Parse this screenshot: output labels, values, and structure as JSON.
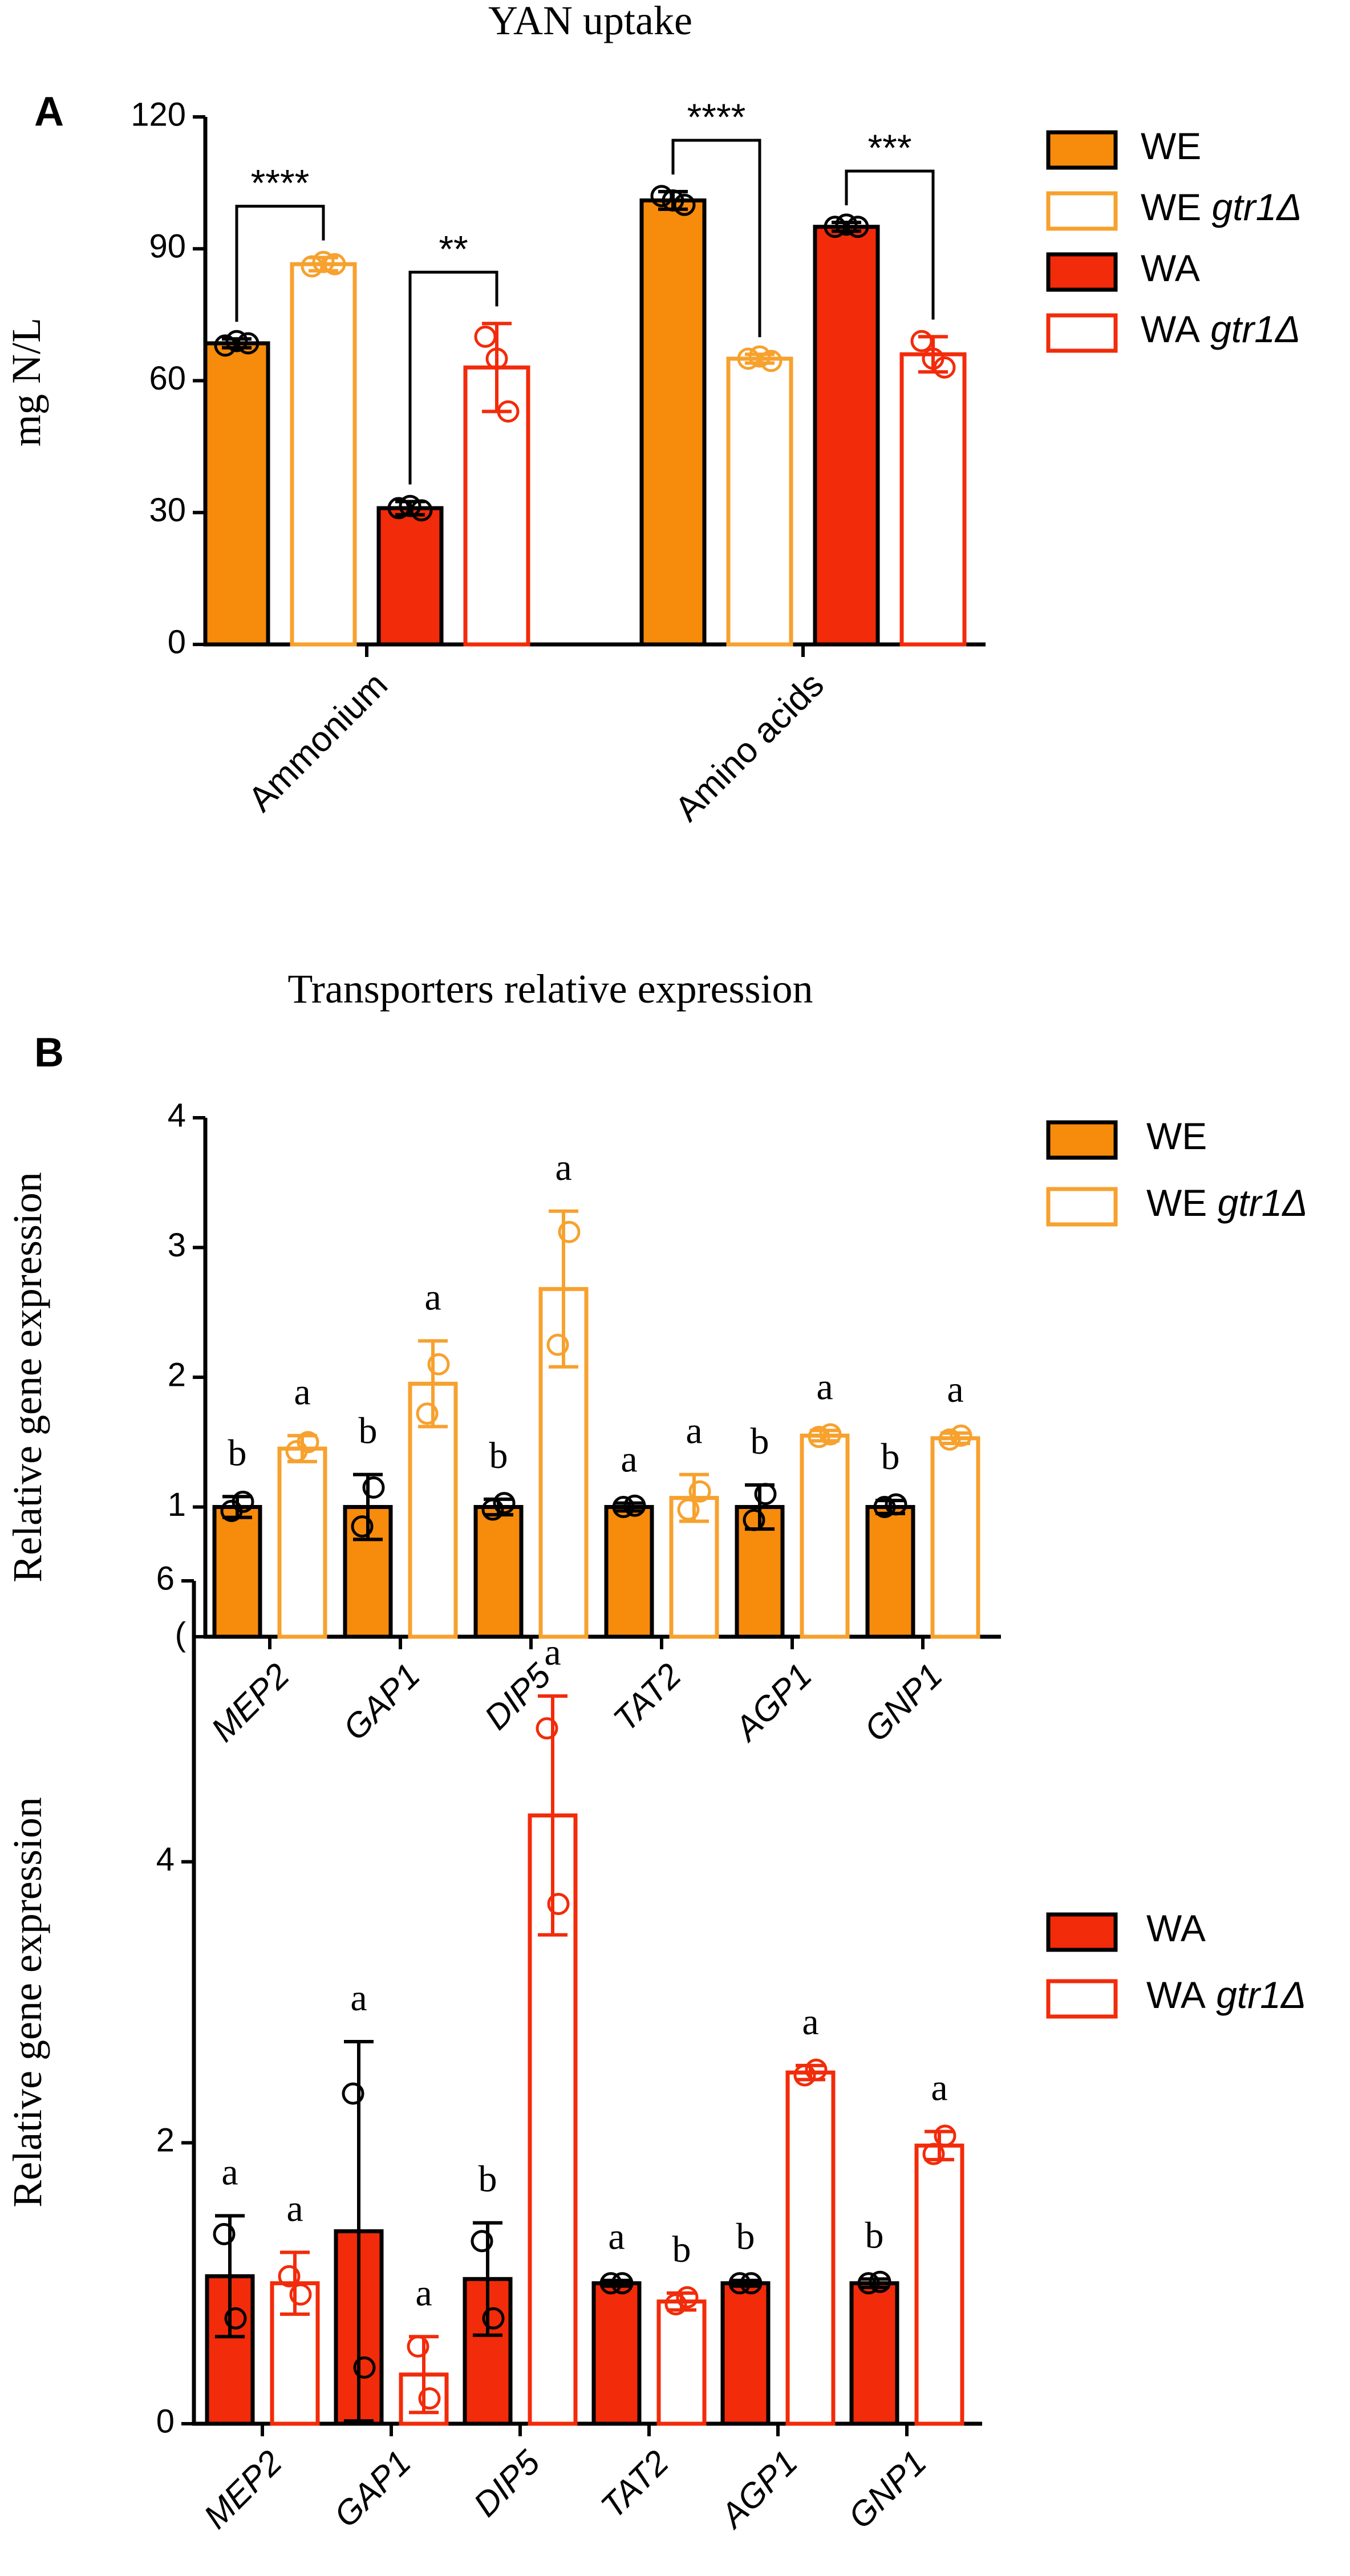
{
  "colors": {
    "we": "#f68b0c",
    "we_light": "#f7a12e",
    "wa": "#f22b0a",
    "axis": "#000000"
  },
  "panels": {
    "A": {
      "label": "A",
      "chart_data": {
        "type": "bar",
        "title": "YAN uptake",
        "ylabel": "mg N/L",
        "ylim": [
          0,
          120
        ],
        "yticks": [
          0,
          30,
          60,
          90,
          120
        ],
        "categories": [
          "Ammonium",
          "Amino acids"
        ],
        "series": [
          {
            "name": "WE",
            "italic": "",
            "fill": "solid",
            "color": "#f68b0c",
            "values": [
              68.5,
              101
            ],
            "errors": [
              1,
              2
            ],
            "points": [
              [
                68,
                69,
                68.5
              ],
              [
                102,
                101,
                100
              ]
            ]
          },
          {
            "name": "WE",
            "italic": "gtr1Δ",
            "fill": "hollow",
            "color": "#f7a12e",
            "values": [
              86.5,
              65
            ],
            "errors": [
              1.5,
              1
            ],
            "points": [
              [
                86,
                87,
                86.5
              ],
              [
                65,
                65.5,
                64.5
              ]
            ]
          },
          {
            "name": "WA",
            "italic": "",
            "fill": "solid",
            "color": "#f22b0a",
            "values": [
              31,
              95
            ],
            "errors": [
              1.5,
              1
            ],
            "points": [
              [
                31,
                31.5,
                30.5
              ],
              [
                95,
                95.5,
                95
              ]
            ]
          },
          {
            "name": "WA",
            "italic": "gtr1Δ",
            "fill": "hollow",
            "color": "#f22b0a",
            "values": [
              63,
              66
            ],
            "errors": [
              10,
              4
            ],
            "points": [
              [
                70,
                65,
                53
              ],
              [
                69,
                65,
                63
              ]
            ]
          }
        ],
        "significance": [
          {
            "group": 0,
            "from": 0,
            "to": 1,
            "label": "****"
          },
          {
            "group": 0,
            "from": 2,
            "to": 3,
            "label": "**"
          },
          {
            "group": 1,
            "from": 0,
            "to": 1,
            "label": "****"
          },
          {
            "group": 1,
            "from": 2,
            "to": 3,
            "label": "***"
          }
        ],
        "legend": "right"
      }
    },
    "B1": {
      "label": "B",
      "chart_data": {
        "type": "bar",
        "title": "Transporters relative expression",
        "ylabel": "Relative gene expression",
        "ylim": [
          0,
          4
        ],
        "yticks": [
          0,
          1,
          2,
          3,
          4
        ],
        "ytick_labels": [
          "(",
          "1",
          "2",
          "3",
          "4"
        ],
        "categories": [
          "MEP2",
          "GAP1",
          "DIP5",
          "TAT2",
          "AGP1",
          "GNP1"
        ],
        "series": [
          {
            "name": "WE",
            "italic": "",
            "fill": "solid",
            "color": "#f68b0c",
            "values": [
              1,
              1,
              1,
              1,
              1,
              1
            ],
            "errors": [
              0.08,
              0.25,
              0.06,
              0.03,
              0.17,
              0.05
            ],
            "points": [
              [
                0.97,
                1.04
              ],
              [
                0.85,
                1.15
              ],
              [
                0.98,
                1.03
              ],
              [
                1,
                1.01
              ],
              [
                0.9,
                1.1
              ],
              [
                1,
                1.02
              ]
            ]
          },
          {
            "name": "WE",
            "italic": "gtr1Δ",
            "fill": "hollow",
            "color": "#f7a12e",
            "values": [
              1.45,
              1.95,
              2.68,
              1.07,
              1.55,
              1.53
            ],
            "errors": [
              0.1,
              0.33,
              0.6,
              0.18,
              0.04,
              0.04
            ],
            "points": [
              [
                1.43,
                1.5
              ],
              [
                1.72,
                2.1
              ],
              [
                2.25,
                3.12
              ],
              [
                0.98,
                1.12
              ],
              [
                1.54,
                1.56
              ],
              [
                1.52,
                1.55
              ]
            ]
          }
        ],
        "letters": [
          [
            "b",
            "a"
          ],
          [
            "b",
            "a"
          ],
          [
            "b",
            "a"
          ],
          [
            "a",
            "a"
          ],
          [
            "b",
            "a"
          ],
          [
            "b",
            "a"
          ]
        ],
        "legend": "right"
      }
    },
    "B2": {
      "chart_data": {
        "type": "bar",
        "title": "",
        "ylabel": "Relative gene expression",
        "ylim": [
          0,
          6
        ],
        "yticks": [
          0,
          2,
          4,
          6
        ],
        "categories": [
          "MEP2",
          "GAP1",
          "DIP5",
          "TAT2",
          "AGP1",
          "GNP1"
        ],
        "series": [
          {
            "name": "WA",
            "italic": "",
            "fill": "solid",
            "color": "#f22b0a",
            "values": [
              1.05,
              1.37,
              1.03,
              1.0,
              1.0,
              1.0
            ],
            "errors": [
              0.43,
              1.35,
              0.4,
              0.02,
              0.02,
              0.03
            ],
            "points": [
              [
                1.35,
                0.75
              ],
              [
                2.35,
                0.4
              ],
              [
                1.3,
                0.75
              ],
              [
                1.0,
                1.0
              ],
              [
                1.0,
                1.0
              ],
              [
                1.0,
                1.01
              ]
            ]
          },
          {
            "name": "WA",
            "italic": "gtr1Δ",
            "fill": "hollow",
            "color": "#f22b0a",
            "values": [
              1.0,
              0.35,
              4.33,
              0.87,
              2.5,
              1.98
            ],
            "errors": [
              0.22,
              0.27,
              0.85,
              0.06,
              0.05,
              0.1
            ],
            "points": [
              [
                1.05,
                0.92
              ],
              [
                0.55,
                0.18
              ],
              [
                4.95,
                3.7
              ],
              [
                0.85,
                0.9
              ],
              [
                2.48,
                2.52
              ],
              [
                1.92,
                2.05
              ]
            ]
          }
        ],
        "letters": [
          [
            "a",
            "a"
          ],
          [
            "a",
            "a"
          ],
          [
            "b",
            "a"
          ],
          [
            "a",
            "b"
          ],
          [
            "b",
            "a"
          ],
          [
            "b",
            "a"
          ]
        ],
        "legend": "right"
      }
    }
  }
}
